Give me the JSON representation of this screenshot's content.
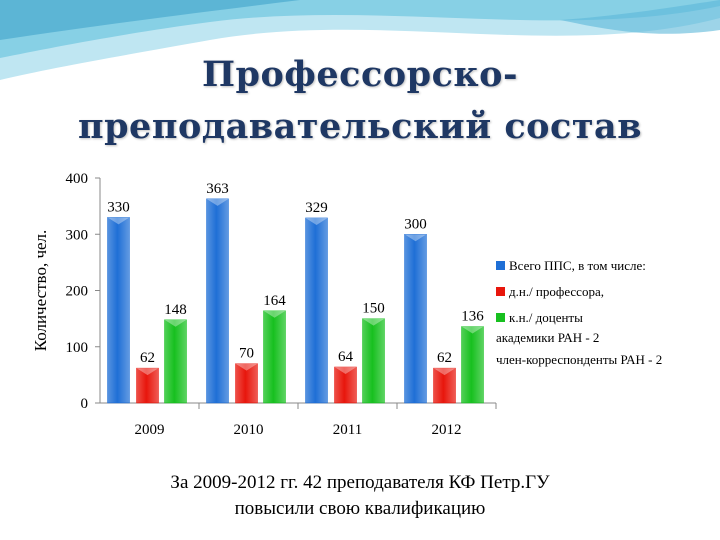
{
  "title": {
    "line1": "Профессорско-",
    "line2": "преподавательский состав"
  },
  "chart_data": {
    "type": "bar",
    "categories": [
      "2009",
      "2010",
      "2011",
      "2012"
    ],
    "series": [
      {
        "name": "Всего ППС, в том числе:",
        "values": [
          330,
          363,
          329,
          300
        ],
        "color": "#1f6fd6"
      },
      {
        "name": "д.н./ профессора,",
        "values": [
          62,
          70,
          64,
          62
        ],
        "color": "#e8160c"
      },
      {
        "name": "к.н./ доценты",
        "values": [
          148,
          164,
          150,
          136
        ],
        "color": "#17c01f"
      }
    ],
    "legend_extra": [
      "академики РАН - 2",
      "член-корреспонденты РАН - 2"
    ],
    "ylabel": "Количество, чел.",
    "xlabel": "",
    "ylim": [
      0,
      400
    ],
    "yticks": [
      0,
      100,
      200,
      300,
      400
    ],
    "grid": false,
    "legend_position": "right"
  },
  "caption": {
    "line1": "За 2009-2012 гг. 42 преподавателя КФ Петр.ГУ",
    "line2": "повысили свою квалификацию"
  },
  "colors": {
    "title": "#1f3864",
    "wave_dark": "#5bb8d8",
    "wave_light": "#bfe6f2"
  }
}
